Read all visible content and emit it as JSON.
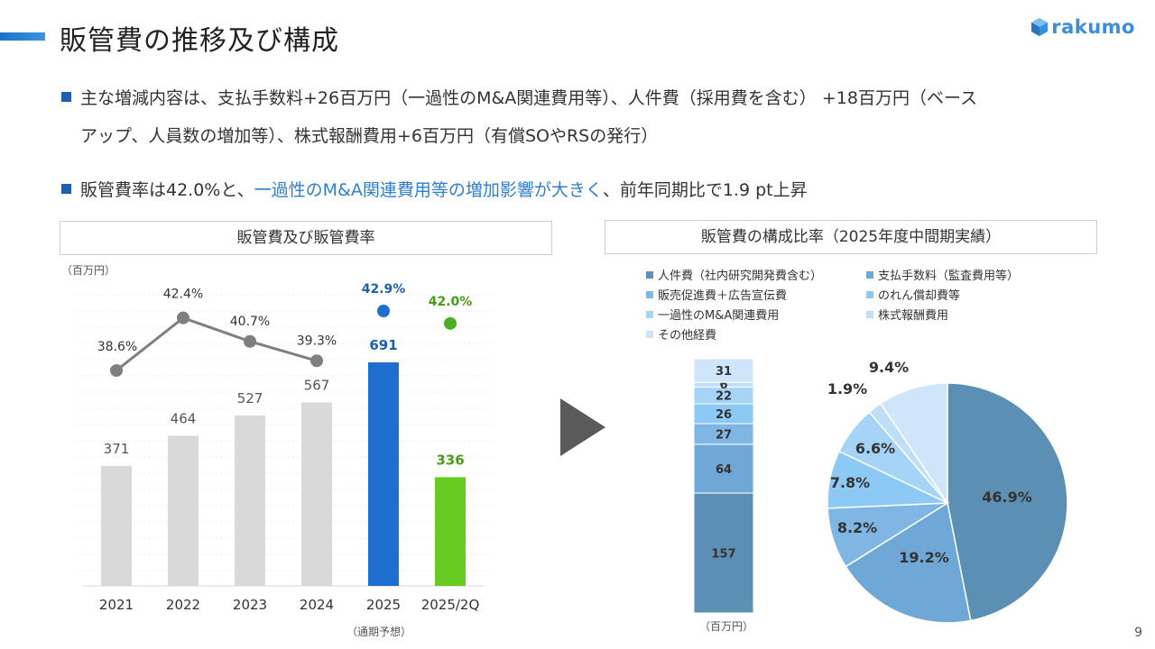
{
  "header": {
    "title": "販管費の推移及び構成",
    "logo_text": "rakumo"
  },
  "bullets": [
    {
      "line1": "主な増減内容は、支払手数料+26百万円（一過性のM&A関連費用等）、人件費（採用費を含む） +18百万円（ベース",
      "line2": "アップ、人員数の増加等）、株式報酬費用+6百万円（有償SOやRSの発行）"
    },
    {
      "pre": "販管費率は42.0%と、",
      "highlight": "一過性のM&A関連費用等の増加影響が大きく",
      "post": "、前年同期比で1.9 pt上昇"
    }
  ],
  "left_chart": {
    "panel_title": "販管費及び販管費率",
    "unit": "（百万円）",
    "forecast_note": "（通期予想）"
  },
  "right_chart": {
    "panel_title": "販管費の構成比率（2025年度中間期実績）",
    "unit": "（百万円）"
  },
  "page_number": "9",
  "colors": {
    "accent": "#1f6fd0",
    "bar_grey": "#d9d9d9",
    "bar_2025": "#1f6fd0",
    "bar_2025_2q": "#66cc22",
    "line_grey": "#7f7f7f",
    "label_2025": "#1f5fb0",
    "label_2025_2q": "#4a9a1a"
  },
  "chart_data": [
    {
      "type": "bar",
      "categories": [
        "2021",
        "2022",
        "2023",
        "2024",
        "2025",
        "2025/2Q"
      ],
      "series": [
        {
          "name": "販管費",
          "values": [
            371,
            464,
            527,
            567,
            691,
            336
          ]
        }
      ],
      "ratio_labels": [
        "38.6%",
        "42.4%",
        "40.7%",
        "39.3%",
        "42.9%",
        "42.0%"
      ],
      "ratio_values": [
        38.6,
        42.4,
        40.7,
        39.3,
        42.9,
        42.0
      ],
      "title": "販管費及び販管費率",
      "ylabel": "（百万円）",
      "ylim": [
        0,
        900
      ],
      "ratio_ylim": [
        32,
        47
      ]
    },
    {
      "type": "bar",
      "stacked": true,
      "categories": [
        "人件費（社内研究開発費含む）",
        "支払手数料（監査費用等）",
        "販売促進費＋広告宣伝費",
        "のれん償却費等",
        "一過性のM&A関連費用",
        "株式報酬費用",
        "その他経費"
      ],
      "values": [
        157,
        64,
        27,
        26,
        22,
        6,
        31
      ],
      "colors": [
        "#5b8fb3",
        "#6fa8d6",
        "#7fb6e4",
        "#8ccaf5",
        "#a6d4f6",
        "#bfdff8",
        "#cfe5f9"
      ],
      "ylabel": "（百万円）"
    },
    {
      "type": "pie",
      "categories": [
        "人件費（社内研究開発費含む）",
        "支払手数料（監査費用等）",
        "販売促進費＋広告宣伝費",
        "のれん償却費等",
        "一過性のM&A関連費用",
        "株式報酬費用",
        "その他経費"
      ],
      "values": [
        46.9,
        19.2,
        8.2,
        7.8,
        6.6,
        1.9,
        9.4
      ],
      "labels": [
        "46.9%",
        "19.2%",
        "8.2%",
        "7.8%",
        "6.6%",
        "1.9%",
        "9.4%"
      ],
      "colors": [
        "#5b8fb3",
        "#6fa8d6",
        "#7fb6e4",
        "#8ccaf5",
        "#a6d4f6",
        "#bfdff8",
        "#cfe5f9"
      ],
      "title": "販管費の構成比率（2025年度中間期実績）"
    }
  ]
}
